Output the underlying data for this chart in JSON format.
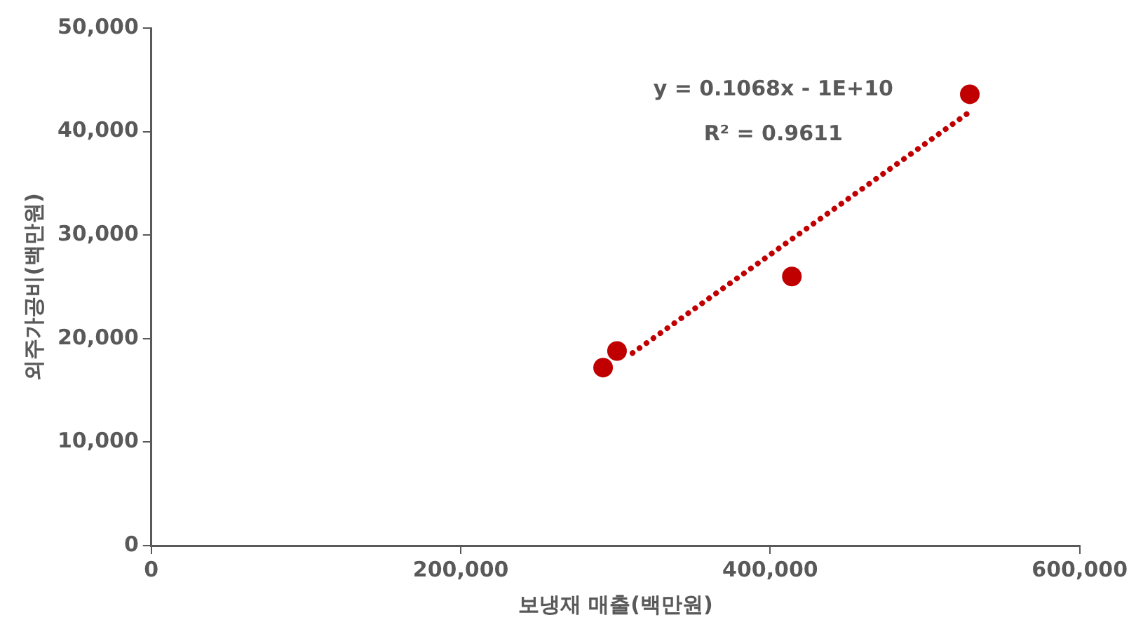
{
  "chart_data": {
    "type": "scatter",
    "xlabel": "보냉재 매출(백만원)",
    "ylabel": "외주가공비(백만원)",
    "annotations": [
      "y = 0.1068x - 1E+10",
      "R² = 0.9611"
    ],
    "series": [
      {
        "color": "#c00000",
        "x": [
          292000,
          301000,
          414000,
          529000
        ],
        "values": [
          17200,
          18800,
          26000,
          43600
        ],
        "marker": "circle"
      },
      {
        "type": "line",
        "color": "#c00000",
        "x": [
          311000,
          528000
        ],
        "values": [
          18600,
          41800
        ],
        "line_style": "dotted",
        "marker": "none"
      }
    ],
    "xlim": [
      0,
      600000
    ],
    "xticks": [
      0,
      {
        "value": 200000,
        "label": "200,000"
      },
      {
        "value": 400000,
        "label": "400,000"
      },
      {
        "value": 600000,
        "label": "600,000"
      }
    ],
    "ylim": [
      0,
      50000
    ],
    "yticks": [
      0,
      {
        "value": 10000,
        "label": "10,000"
      },
      {
        "value": 20000,
        "label": "20,000"
      },
      {
        "value": 30000,
        "label": "30,000"
      },
      {
        "value": 40000,
        "label": "40,000"
      },
      {
        "value": 50000,
        "label": "50,000"
      }
    ],
    "grid": false,
    "legend": false
  }
}
